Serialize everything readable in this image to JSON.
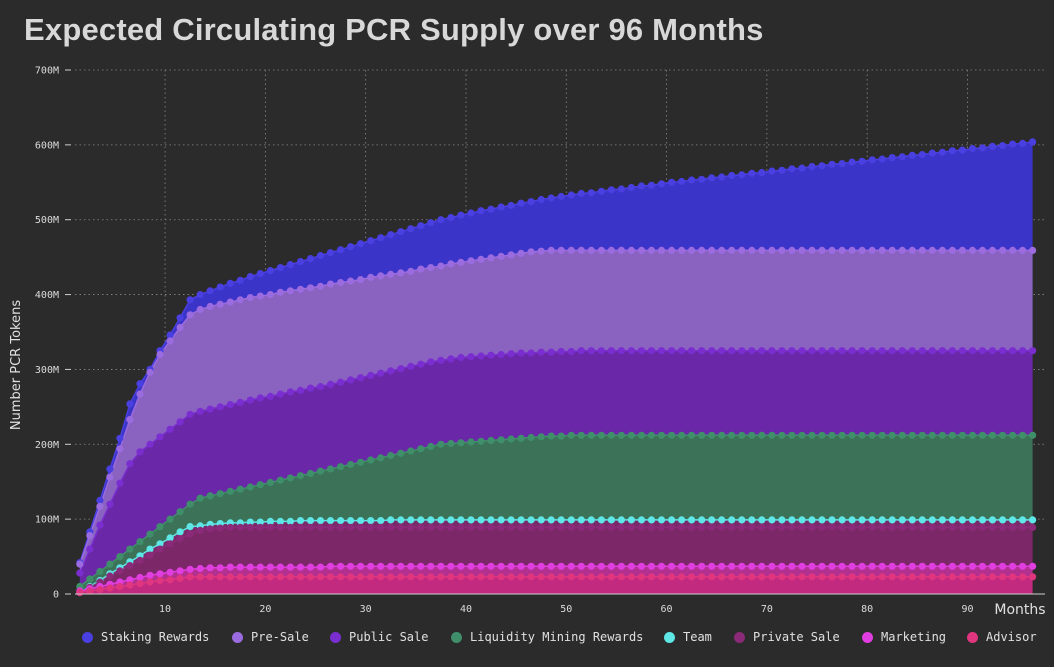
{
  "chart_data": {
    "type": "area",
    "title": "Expected Circulating PCR Supply over 96 Months",
    "xlabel": "Months",
    "ylabel": "Number PCR Tokens",
    "xlim": [
      1,
      96
    ],
    "ylim": [
      0,
      700000000
    ],
    "x_ticks": [
      "10",
      "20",
      "30",
      "40",
      "50",
      "60",
      "70",
      "80",
      "90"
    ],
    "y_ticks": [
      "0",
      "100M",
      "200M",
      "300M",
      "400M",
      "500M",
      "600M",
      "700M"
    ],
    "grid": true,
    "legend_position": "bottom",
    "stacked": true,
    "x": [
      1,
      2,
      3,
      4,
      5,
      6,
      7,
      8,
      9,
      10,
      11,
      12,
      13,
      14,
      15,
      16,
      17,
      18,
      19,
      20,
      21,
      22,
      23,
      24,
      25,
      26,
      27,
      28,
      29,
      30,
      31,
      32,
      33,
      34,
      35,
      36,
      37,
      38,
      39,
      40,
      41,
      42,
      43,
      44,
      45,
      46,
      47,
      48,
      49,
      50,
      51,
      52,
      53,
      54,
      55,
      56,
      57,
      58,
      59,
      60,
      61,
      62,
      63,
      64,
      65,
      66,
      67,
      68,
      69,
      70,
      71,
      72,
      73,
      74,
      75,
      76,
      77,
      78,
      79,
      80,
      81,
      82,
      83,
      84,
      85,
      86,
      87,
      88,
      89,
      90,
      91,
      92,
      93,
      94,
      95,
      96
    ],
    "series": [
      {
        "name": "Staking Rewards",
        "color": "#4a3fe0",
        "fill": "#3b34c8",
        "values": [
          42,
          83,
          125,
          167,
          208,
          254,
          281,
          300,
          325,
          346,
          369,
          393,
          400,
          405,
          410,
          415,
          419,
          424,
          428,
          432,
          436,
          440,
          444,
          448,
          452,
          456,
          460,
          464,
          468,
          472,
          476,
          480,
          484,
          488,
          492,
          496,
          500,
          503,
          506,
          509,
          512,
          514,
          517,
          519,
          522,
          524,
          527,
          529,
          531,
          533,
          535,
          536,
          538,
          540,
          541,
          543,
          545,
          546,
          548,
          550,
          551,
          553,
          554,
          556,
          557,
          559,
          560,
          562,
          563,
          565,
          566,
          568,
          569,
          571,
          572,
          574,
          575,
          577,
          578,
          580,
          581,
          583,
          584,
          586,
          587,
          589,
          590,
          592,
          593,
          595,
          596,
          598,
          599,
          601,
          602,
          604
        ]
      },
      {
        "name": "Pre-Sale",
        "color": "#9b6be0",
        "fill": "#8a62c0",
        "values": [
          40,
          78,
          117,
          156,
          194,
          233,
          267,
          296,
          320,
          338,
          356,
          373,
          380,
          384,
          387,
          390,
          393,
          396,
          398,
          400,
          403,
          405,
          407,
          409,
          411,
          414,
          416,
          418,
          420,
          423,
          425,
          427,
          429,
          431,
          434,
          436,
          438,
          441,
          443,
          445,
          447,
          449,
          451,
          453,
          455,
          457,
          458,
          459,
          459,
          459,
          459,
          459,
          459,
          459,
          459,
          459,
          459,
          459,
          459,
          459,
          459,
          459,
          459,
          459,
          459,
          459,
          459,
          459,
          459,
          459,
          459,
          459,
          459,
          459,
          459,
          459,
          459,
          459,
          459,
          459,
          459,
          459,
          459,
          459,
          459,
          459,
          459,
          459,
          459,
          459,
          459,
          459,
          459,
          459,
          459,
          459
        ]
      },
      {
        "name": "Public Sale",
        "color": "#7b2ed0",
        "fill": "#6a28a8",
        "values": [
          28,
          60,
          92,
          120,
          148,
          174,
          190,
          200,
          210,
          220,
          230,
          240,
          244,
          247,
          250,
          253,
          256,
          259,
          262,
          264,
          267,
          270,
          272,
          275,
          277,
          280,
          283,
          286,
          289,
          292,
          295,
          298,
          301,
          304,
          307,
          310,
          312,
          314,
          316,
          317,
          318,
          319,
          320,
          321,
          322,
          322,
          323,
          323,
          324,
          324,
          325,
          325,
          325,
          325,
          325,
          325,
          325,
          325,
          325,
          325,
          325,
          325,
          325,
          325,
          325,
          325,
          325,
          325,
          325,
          325,
          325,
          325,
          325,
          325,
          325,
          325,
          325,
          325,
          325,
          325,
          325,
          325,
          325,
          325,
          325,
          325,
          325,
          325,
          325,
          325,
          325,
          325,
          325,
          325,
          325,
          325
        ]
      },
      {
        "name": "Liquidity Mining Rewards",
        "color": "#3e8f6a",
        "fill": "#3b7258",
        "values": [
          10,
          20,
          30,
          40,
          50,
          60,
          70,
          80,
          90,
          100,
          110,
          120,
          128,
          131,
          134,
          137,
          140,
          143,
          146,
          149,
          152,
          155,
          158,
          161,
          164,
          167,
          170,
          173,
          176,
          179,
          182,
          185,
          188,
          191,
          194,
          197,
          200,
          201,
          202,
          203,
          204,
          205,
          206,
          207,
          208,
          209,
          210,
          211,
          211,
          212,
          212,
          212,
          212,
          212,
          212,
          212,
          212,
          212,
          212,
          212,
          212,
          212,
          212,
          212,
          212,
          212,
          212,
          212,
          212,
          212,
          212,
          212,
          212,
          212,
          212,
          212,
          212,
          212,
          212,
          212,
          212,
          212,
          212,
          212,
          212,
          212,
          212,
          212,
          212,
          212,
          212,
          212,
          212,
          212,
          212,
          212
        ]
      },
      {
        "name": "Team",
        "color": "#5fe6e6",
        "fill": "#7a2a6a",
        "values": [
          2,
          10,
          18,
          27,
          35,
          43,
          51,
          60,
          67,
          75,
          83,
          90,
          91,
          93,
          94,
          95,
          95,
          96,
          96,
          97,
          97,
          97,
          98,
          98,
          98,
          98,
          98,
          98,
          98,
          98,
          98,
          99,
          99,
          99,
          99,
          99,
          99,
          99,
          99,
          99,
          99,
          99,
          99,
          99,
          99,
          99,
          99,
          99,
          99,
          99,
          99,
          99,
          99,
          99,
          99,
          99,
          99,
          99,
          99,
          99,
          99,
          99,
          99,
          99,
          99,
          99,
          99,
          99,
          99,
          99,
          99,
          99,
          99,
          99,
          99,
          99,
          99,
          99,
          99,
          99,
          99,
          99,
          99,
          99,
          99,
          99,
          99,
          99,
          99,
          99,
          99,
          99,
          99,
          99,
          99,
          99
        ]
      },
      {
        "name": "Private Sale",
        "color": "#8a2a78",
        "fill": "#7c2768",
        "values": [
          2,
          9,
          16,
          24,
          31,
          38,
          45,
          52,
          60,
          67,
          74,
          80,
          85,
          87,
          88,
          89,
          89,
          89,
          89,
          89,
          89,
          89,
          89,
          89,
          89,
          89,
          89,
          89,
          89,
          89,
          89,
          89,
          89,
          89,
          89,
          89,
          89,
          89,
          89,
          89,
          89,
          89,
          89,
          89,
          89,
          89,
          89,
          89,
          89,
          89,
          89,
          89,
          89,
          89,
          89,
          89,
          89,
          89,
          89,
          89,
          89,
          89,
          89,
          89,
          89,
          89,
          89,
          89,
          89,
          89,
          89,
          89,
          89,
          89,
          89,
          89,
          89,
          89,
          89,
          89,
          89,
          89,
          89,
          89,
          89,
          89,
          89,
          89,
          89,
          89,
          89,
          89,
          89,
          89,
          89,
          89
        ]
      },
      {
        "name": "Marketing",
        "color": "#e03ee0",
        "fill": "#b2308f",
        "values": [
          4,
          7,
          10,
          13,
          16,
          19,
          22,
          25,
          27,
          29,
          31,
          33,
          34,
          35,
          35,
          36,
          36,
          36,
          36,
          36,
          36,
          36,
          36,
          36,
          36,
          37,
          37,
          37,
          37,
          37,
          37,
          37,
          37,
          37,
          37,
          37,
          37,
          37,
          37,
          37,
          37,
          37,
          37,
          37,
          37,
          37,
          37,
          37,
          37,
          37,
          37,
          37,
          37,
          37,
          37,
          37,
          37,
          37,
          37,
          37,
          37,
          37,
          37,
          37,
          37,
          37,
          37,
          37,
          37,
          37,
          37,
          37,
          37,
          37,
          37,
          37,
          37,
          37,
          37,
          37,
          37,
          37,
          37,
          37,
          37,
          37,
          37,
          37,
          37,
          37,
          37,
          37,
          37,
          37,
          37,
          37
        ]
      },
      {
        "name": "Advisor",
        "color": "#e0357f",
        "fill": "#c22a80",
        "values": [
          2,
          4,
          6,
          8,
          10,
          12,
          14,
          16,
          18,
          19,
          21,
          23,
          23,
          23,
          23,
          23,
          23,
          23,
          23,
          23,
          23,
          23,
          23,
          23,
          23,
          23,
          23,
          23,
          23,
          23,
          23,
          23,
          23,
          23,
          23,
          23,
          23,
          23,
          23,
          23,
          23,
          23,
          23,
          23,
          23,
          23,
          23,
          23,
          23,
          23,
          23,
          23,
          23,
          23,
          23,
          23,
          23,
          23,
          23,
          23,
          23,
          23,
          23,
          23,
          23,
          23,
          23,
          23,
          23,
          23,
          23,
          23,
          23,
          23,
          23,
          23,
          23,
          23,
          23,
          23,
          23,
          23,
          23,
          23,
          23,
          23,
          23,
          23,
          23,
          23,
          23,
          23,
          23,
          23,
          23,
          23
        ]
      }
    ],
    "values_unit": "M"
  }
}
